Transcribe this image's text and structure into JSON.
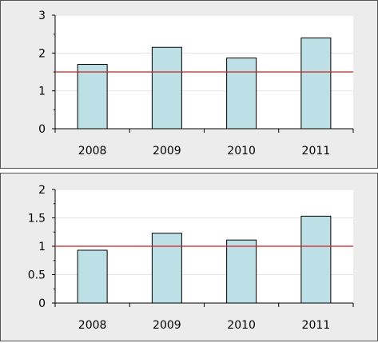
{
  "chart_data": [
    {
      "type": "bar",
      "categories": [
        "2008",
        "2009",
        "2010",
        "2011"
      ],
      "values": [
        1.7,
        2.15,
        1.87,
        2.4
      ],
      "reference_line": 1.5,
      "ylim": [
        0,
        3
      ],
      "yticks": [
        "0",
        "1",
        "2",
        "3"
      ],
      "ytick_values": [
        0,
        1,
        2,
        3
      ],
      "grid": true,
      "bar_color": "#bde0e6",
      "line_color": "#cc2222"
    },
    {
      "type": "bar",
      "categories": [
        "2008",
        "2009",
        "2010",
        "2011"
      ],
      "values": [
        0.93,
        1.23,
        1.11,
        1.53
      ],
      "reference_line": 1.0,
      "ylim": [
        0,
        2
      ],
      "yticks": [
        "0",
        "0.5",
        "1",
        "1.5",
        "2"
      ],
      "ytick_values": [
        0,
        0.5,
        1,
        1.5,
        2
      ],
      "grid": true,
      "bar_color": "#bde0e6",
      "line_color": "#cc2222"
    }
  ]
}
